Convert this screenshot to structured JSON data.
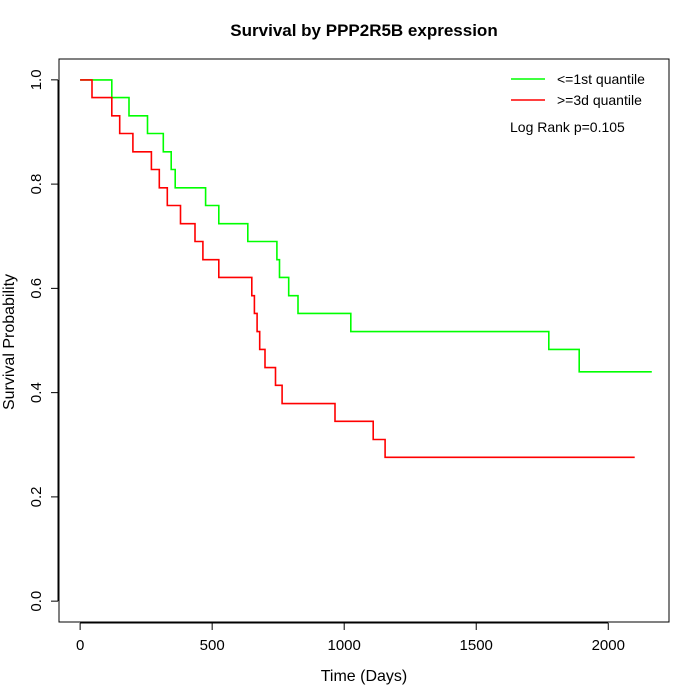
{
  "chart_data": {
    "type": "line",
    "title": "Survival by PPP2R5B expression",
    "xlabel": "Time (Days)",
    "ylabel": "Survival Probability",
    "xlim": [
      -80,
      2230
    ],
    "ylim": [
      -0.04,
      1.04
    ],
    "xticks": [
      0,
      500,
      1000,
      1500,
      2000
    ],
    "xtick_labels": [
      "0",
      "500",
      "1000",
      "1500",
      "2000"
    ],
    "yticks": [
      0.0,
      0.2,
      0.4,
      0.6,
      0.8,
      1.0
    ],
    "ytick_labels": [
      "0.0",
      "0.2",
      "0.4",
      "0.6",
      "0.8",
      "1.0"
    ],
    "grid": false,
    "legend_position": "top-right",
    "annotation": "Log Rank p=0.105",
    "series": [
      {
        "name": "<=1st quantile",
        "color": "#00ff00",
        "step_points": [
          [
            0,
            1.0
          ],
          [
            120,
            0.966
          ],
          [
            185,
            0.931
          ],
          [
            255,
            0.897
          ],
          [
            315,
            0.862
          ],
          [
            345,
            0.828
          ],
          [
            360,
            0.793
          ],
          [
            475,
            0.759
          ],
          [
            525,
            0.724
          ],
          [
            635,
            0.69
          ],
          [
            745,
            0.655
          ],
          [
            755,
            0.621
          ],
          [
            790,
            0.586
          ],
          [
            825,
            0.552
          ],
          [
            1025,
            0.517
          ],
          [
            1775,
            0.483
          ],
          [
            1890,
            0.44
          ],
          [
            2165,
            0.44
          ]
        ]
      },
      {
        "name": ">=3d quantile",
        "color": "#ff0000",
        "step_points": [
          [
            0,
            1.0
          ],
          [
            45,
            0.966
          ],
          [
            120,
            0.931
          ],
          [
            150,
            0.897
          ],
          [
            200,
            0.862
          ],
          [
            270,
            0.828
          ],
          [
            300,
            0.793
          ],
          [
            330,
            0.759
          ],
          [
            380,
            0.724
          ],
          [
            435,
            0.69
          ],
          [
            465,
            0.655
          ],
          [
            525,
            0.621
          ],
          [
            650,
            0.586
          ],
          [
            660,
            0.552
          ],
          [
            670,
            0.517
          ],
          [
            680,
            0.483
          ],
          [
            700,
            0.448
          ],
          [
            740,
            0.414
          ],
          [
            765,
            0.379
          ],
          [
            965,
            0.345
          ],
          [
            1110,
            0.31
          ],
          [
            1155,
            0.276
          ],
          [
            2100,
            0.276
          ]
        ]
      }
    ]
  }
}
